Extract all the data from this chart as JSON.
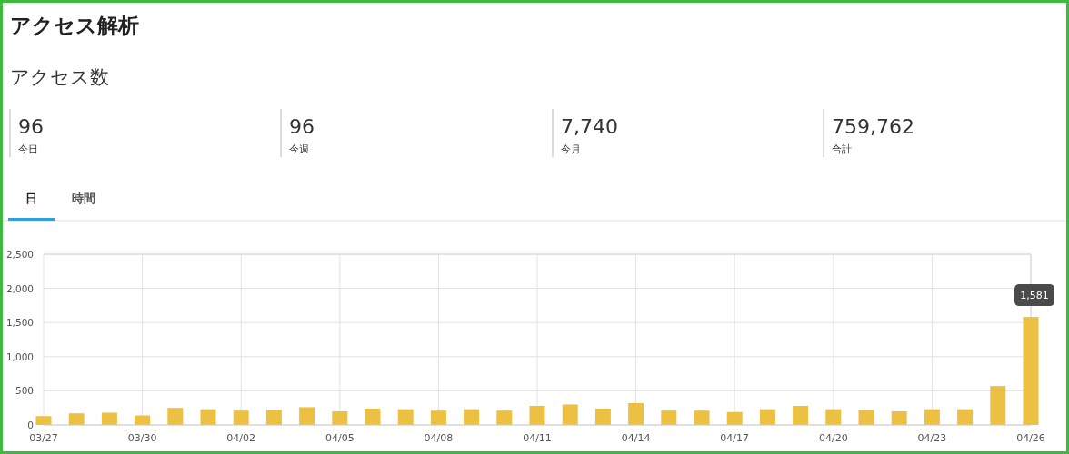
{
  "chart_data": {
    "type": "bar",
    "title": "アクセス解析",
    "subtitle": "アクセス数",
    "annotations": [
      "96",
      "今日",
      "96",
      "今週",
      "7,740",
      "今月",
      "759,762",
      "合計",
      "日",
      "時間"
    ],
    "categories": [
      "03/27",
      null,
      null,
      "03/30",
      null,
      null,
      "04/02",
      null,
      null,
      "04/05",
      null,
      null,
      "04/08",
      null,
      null,
      "04/11",
      null,
      null,
      "04/14",
      null,
      null,
      "04/17",
      null,
      null,
      "04/20",
      null,
      null,
      "04/23",
      null,
      null,
      "04/26"
    ],
    "values": [
      130,
      170,
      180,
      140,
      250,
      230,
      210,
      220,
      260,
      200,
      240,
      230,
      210,
      230,
      210,
      280,
      300,
      240,
      320,
      210,
      210,
      190,
      230,
      280,
      230,
      220,
      200,
      230,
      230,
      570,
      1581
    ],
    "value_labels": [
      null,
      null,
      null,
      null,
      null,
      null,
      null,
      null,
      null,
      null,
      null,
      null,
      null,
      null,
      null,
      null,
      null,
      null,
      null,
      null,
      null,
      null,
      null,
      null,
      null,
      null,
      null,
      null,
      null,
      null,
      "1,581"
    ],
    "color": "#ecc042",
    "ylim": [
      0,
      2500
    ],
    "yticks": [
      0,
      {
        "value": 500,
        "label": "500"
      },
      {
        "value": 1000,
        "label": "1,000"
      },
      {
        "value": 1500,
        "label": "1,500"
      },
      {
        "value": 2000,
        "label": "2,000"
      },
      {
        "value": 2500,
        "label": "2,500"
      }
    ],
    "grid": true
  }
}
